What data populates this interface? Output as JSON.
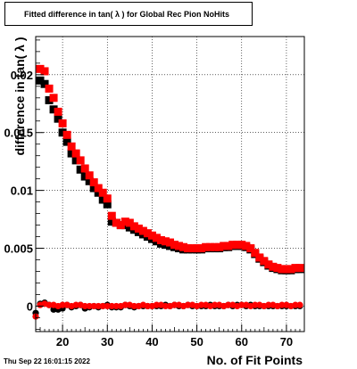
{
  "title": "Fitted difference in tan( λ ) for Global Rec Pion NoHits",
  "timestamp": "Thu Sep 22 16:01:15 2022",
  "chart_data": {
    "type": "scatter",
    "title": "Fitted difference in tan( λ ) for Global Rec Pion NoHits",
    "xlabel": "No. of Fit Points",
    "ylabel": "difference in tan( λ )",
    "xlim": [
      14,
      74
    ],
    "ylim": [
      -0.0022,
      0.0233
    ],
    "grid": true,
    "x_ticks": [
      20,
      30,
      40,
      50,
      60,
      70
    ],
    "x_tick_labels": [
      "20",
      "30",
      "40",
      "50",
      "60",
      "70"
    ],
    "y_ticks": [
      0,
      0.005,
      0.01,
      0.015,
      0.02
    ],
    "y_tick_labels": [
      "0",
      "0.005",
      "0.01",
      "0.015",
      "0.02"
    ],
    "colors": {
      "black_series": "#000000",
      "red_series": "#ff0000"
    },
    "series": [
      {
        "color": "black",
        "marker": "square",
        "x": [
          15,
          16,
          17,
          18,
          19,
          20,
          21,
          22,
          23,
          24,
          25,
          26,
          27,
          28,
          29,
          30,
          31,
          32,
          33,
          34,
          35,
          36,
          37,
          38,
          39,
          40,
          41,
          42,
          43,
          44,
          45,
          46,
          47,
          48,
          49,
          50,
          51,
          52,
          53,
          54,
          55,
          56,
          57,
          58,
          59,
          60,
          61,
          62,
          63,
          64,
          65,
          66,
          67,
          68,
          69,
          70,
          71,
          72,
          73
        ],
        "y": [
          0.0195,
          0.0192,
          0.0178,
          0.017,
          0.0162,
          0.015,
          0.0142,
          0.0132,
          0.0126,
          0.0118,
          0.0112,
          0.0108,
          0.0102,
          0.0098,
          0.0092,
          0.0088,
          0.0073,
          0.0072,
          0.007,
          0.007,
          0.0068,
          0.0066,
          0.0064,
          0.0062,
          0.006,
          0.0058,
          0.0056,
          0.0054,
          0.0053,
          0.0052,
          0.0051,
          0.005,
          0.0049,
          0.0049,
          0.0049,
          0.0049,
          0.0049,
          0.005,
          0.005,
          0.005,
          0.005,
          0.0051,
          0.0051,
          0.0052,
          0.0052,
          0.0052,
          0.0051,
          0.0049,
          0.0045,
          0.0041,
          0.0038,
          0.0035,
          0.0033,
          0.0032,
          0.0031,
          0.0031,
          0.0031,
          0.0032,
          0.0032
        ]
      },
      {
        "color": "red",
        "marker": "square",
        "x": [
          15,
          16,
          17,
          18,
          19,
          20,
          21,
          22,
          23,
          24,
          25,
          26,
          27,
          28,
          29,
          30,
          31,
          32,
          33,
          34,
          35,
          36,
          37,
          38,
          39,
          40,
          41,
          42,
          43,
          44,
          45,
          46,
          47,
          48,
          49,
          50,
          51,
          52,
          53,
          54,
          55,
          56,
          57,
          58,
          59,
          60,
          61,
          62,
          63,
          64,
          65,
          66,
          67,
          68,
          69,
          70,
          71,
          72,
          73
        ],
        "y": [
          0.0205,
          0.0203,
          0.0188,
          0.018,
          0.0168,
          0.0158,
          0.0148,
          0.0138,
          0.0132,
          0.0126,
          0.0119,
          0.0113,
          0.0107,
          0.0102,
          0.0098,
          0.0093,
          0.0078,
          0.0072,
          0.007,
          0.0073,
          0.0072,
          0.0069,
          0.0067,
          0.0065,
          0.0063,
          0.0061,
          0.0059,
          0.0057,
          0.0056,
          0.0055,
          0.0053,
          0.0052,
          0.0051,
          0.005,
          0.005,
          0.005,
          0.005,
          0.0051,
          0.0051,
          0.0051,
          0.0051,
          0.0052,
          0.0052,
          0.0053,
          0.0053,
          0.0053,
          0.0052,
          0.005,
          0.0046,
          0.0042,
          0.0039,
          0.0036,
          0.0034,
          0.0033,
          0.0032,
          0.0032,
          0.0032,
          0.0033,
          0.0033
        ]
      },
      {
        "color": "black",
        "marker": "circle",
        "x": [
          14,
          15,
          16,
          17,
          18,
          19,
          20,
          21,
          22,
          23,
          24,
          25,
          26,
          27,
          28,
          29,
          30,
          31,
          32,
          33,
          34,
          35,
          36,
          37,
          38,
          39,
          40,
          41,
          42,
          43,
          44,
          45,
          46,
          47,
          48,
          49,
          50,
          51,
          52,
          53,
          54,
          55,
          56,
          57,
          58,
          59,
          60,
          61,
          62,
          63,
          64,
          65,
          66,
          67,
          68,
          69,
          70,
          71,
          72,
          73
        ],
        "y": [
          -0.0006,
          0.0002,
          0.0003,
          0.0001,
          -0.0003,
          -0.0003,
          -0.0002,
          0.0001,
          -0.0001,
          0.0,
          0.0001,
          -0.0002,
          -0.0001,
          0.0,
          -0.0001,
          0.0,
          0.0001,
          -0.0001,
          -0.0001,
          -0.0001,
          0.0001,
          0.0,
          -0.0001,
          0.0,
          0.0,
          0.0,
          0.0,
          0.0,
          0.0,
          0.0001,
          0.0,
          0.0001,
          0.0,
          0.0,
          0.0001,
          0.0,
          0.0,
          0.0,
          0.0,
          0.0001,
          0.0,
          0.0,
          0.0,
          0.0001,
          0.0,
          0.0001,
          0.0001,
          0.0,
          0.0001,
          0.0,
          0.0,
          0.0,
          0.0,
          0.0,
          0.0,
          0.0,
          0.0,
          0.0,
          0.0,
          0.0
        ]
      },
      {
        "color": "red",
        "marker": "circle",
        "x": [
          14,
          15,
          16,
          17,
          18,
          19,
          20,
          21,
          22,
          23,
          24,
          25,
          26,
          27,
          28,
          29,
          30,
          31,
          32,
          33,
          34,
          35,
          36,
          37,
          38,
          39,
          40,
          41,
          42,
          43,
          44,
          45,
          46,
          47,
          48,
          49,
          50,
          51,
          52,
          53,
          54,
          55,
          56,
          57,
          58,
          59,
          60,
          61,
          62,
          63,
          64,
          65,
          66,
          67,
          68,
          69,
          70,
          71,
          72,
          73
        ],
        "y": [
          -0.0009,
          0.0001,
          0.0002,
          0.0001,
          0.0001,
          0.0,
          0.0001,
          0.0001,
          0.0,
          0.0001,
          0.0001,
          0.0,
          0.0,
          0.0,
          0.0,
          0.0,
          0.0,
          0.0,
          0.0,
          0.0,
          0.0001,
          0.0001,
          0.0,
          0.0,
          0.0001,
          0.0,
          0.0,
          0.0001,
          0.0001,
          0.0,
          0.0,
          0.0001,
          0.0001,
          0.0,
          0.0001,
          0.0001,
          0.0,
          0.0001,
          0.0001,
          0.0,
          0.0001,
          0.0001,
          0.0,
          0.0001,
          0.0001,
          0.0,
          0.0001,
          0.0001,
          0.0,
          0.0001,
          0.0001,
          0.0,
          0.0001,
          0.0001,
          0.0,
          0.0001,
          0.0001,
          0.0,
          0.0001,
          0.0001
        ]
      }
    ]
  }
}
